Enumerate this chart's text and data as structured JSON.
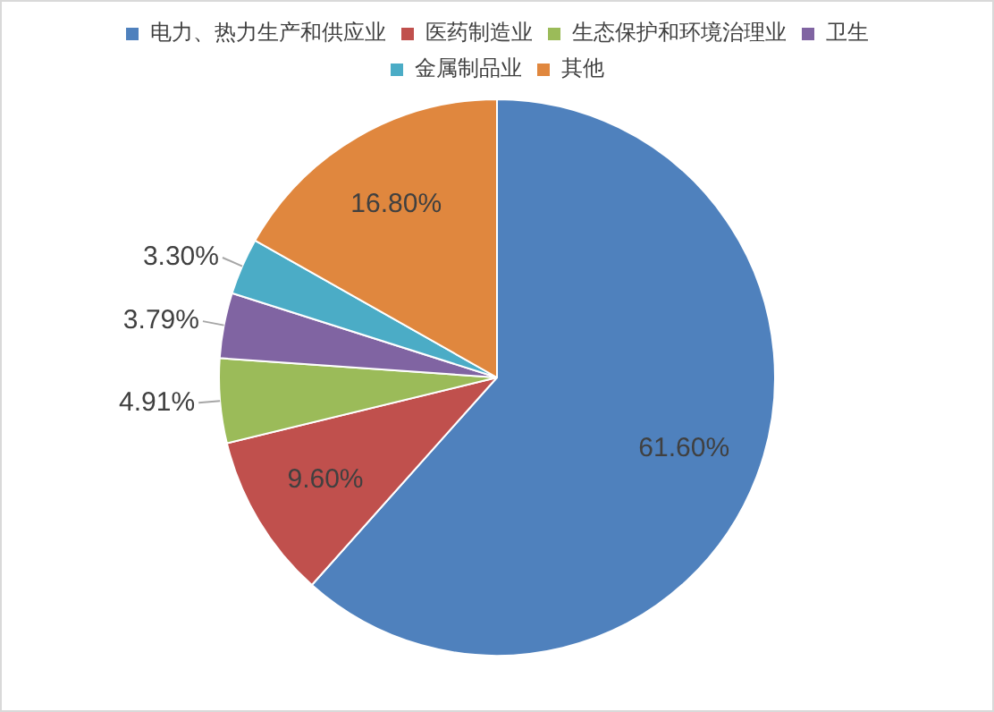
{
  "chart_data": {
    "type": "pie",
    "categories": [
      "电力、热力生产和供应业",
      "医药制造业",
      "生态保护和环境治理业",
      "卫生",
      "金属制品业",
      "其他"
    ],
    "values": [
      61.6,
      9.6,
      4.91,
      3.79,
      3.3,
      16.8
    ],
    "colors": [
      "#4f81bd",
      "#c0504d",
      "#9bbb59",
      "#8064a2",
      "#4bacc6",
      "#e0873e"
    ],
    "value_labels": [
      "61.60%",
      "9.60%",
      "4.91%",
      "3.79%",
      "3.30%",
      "16.80%"
    ],
    "legend": "top"
  }
}
